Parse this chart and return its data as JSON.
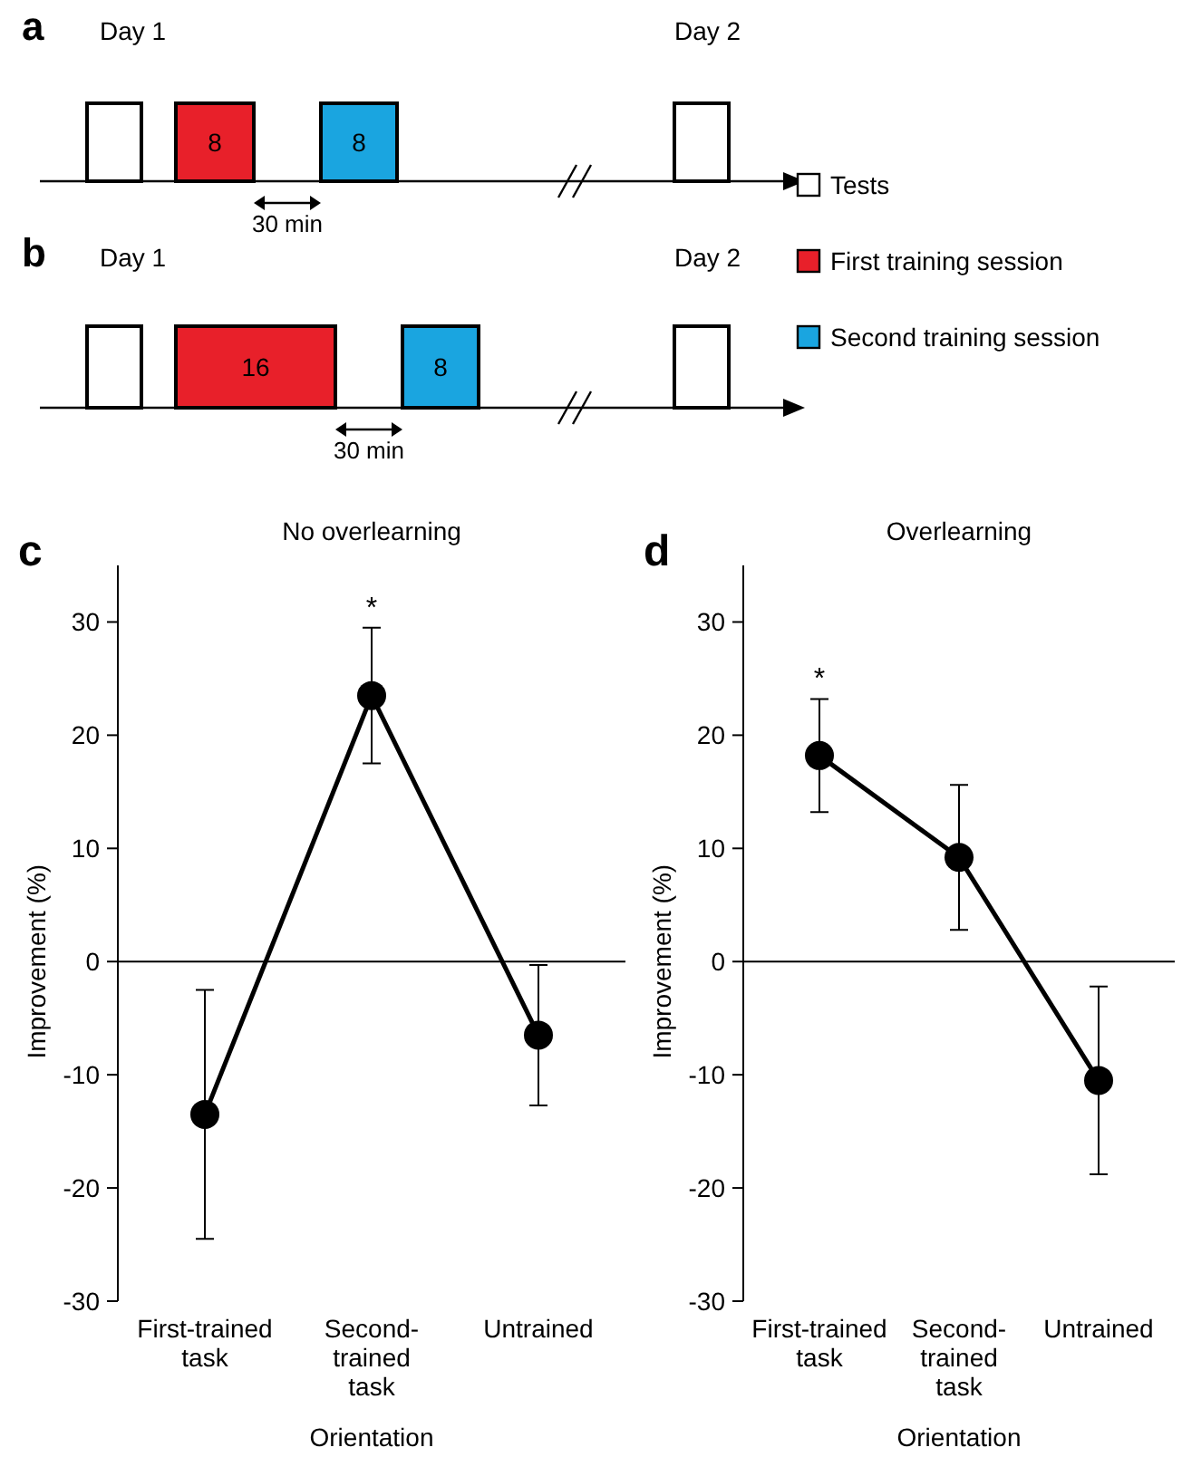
{
  "chart_data": [
    {
      "type": "other",
      "annotations": [
        "a",
        "Day 1",
        "8",
        "8",
        "30 min",
        "Day 2"
      ],
      "legend": "right",
      "series": [
        {
          "name": "Tests",
          "color": "#ffffff"
        },
        {
          "name": "First training session",
          "color": "#e8202a"
        },
        {
          "name": "Second training session",
          "color": "#1aa5e0"
        }
      ]
    },
    {
      "type": "other",
      "annotations": [
        "b",
        "Day 1",
        "16",
        "8",
        "30 min",
        "Day 2"
      ],
      "series": [
        {
          "color": "#ffffff"
        },
        {
          "color": "#e8202a"
        },
        {
          "color": "#1aa5e0"
        }
      ]
    },
    {
      "type": "line",
      "title": "No overlearning",
      "annotations": [
        "c",
        {
          "text": "*",
          "x": "Second-\ntrained\ntask",
          "y": 29.5
        }
      ],
      "categories": [
        "First-trained\ntask",
        "Second-\ntrained\ntask",
        "Untrained"
      ],
      "series": [
        {
          "color": "#000000",
          "values": [
            -13.5,
            23.5,
            -6.5
          ],
          "errors": [
            11,
            6,
            6.2
          ]
        }
      ],
      "ylim": [
        -30,
        35
      ],
      "yticks": [
        -30,
        -20,
        -10,
        0,
        10,
        20,
        30
      ],
      "ylabel": "Improvement (%)",
      "xlabel": "Orientation",
      "ref_lines": [
        {
          "axis": "y",
          "value": 0
        }
      ],
      "marker": "circle",
      "line_style": "solid"
    },
    {
      "type": "line",
      "title": "Overlearning",
      "annotations": [
        "d",
        {
          "text": "*",
          "x": "First-trained\ntask",
          "y": 23.2
        }
      ],
      "categories": [
        "First-trained\ntask",
        "Second-\ntrained\ntask",
        "Untrained"
      ],
      "series": [
        {
          "color": "#000000",
          "values": [
            18.2,
            9.2,
            -10.5
          ],
          "errors": [
            5,
            6.4,
            8.3
          ]
        }
      ],
      "ylim": [
        -30,
        35
      ],
      "yticks": [
        -30,
        -20,
        -10,
        0,
        10,
        20,
        30
      ],
      "ylabel": "Improvement (%)",
      "xlabel": "Orientation",
      "ref_lines": [
        {
          "axis": "y",
          "value": 0
        }
      ],
      "marker": "circle",
      "line_style": "solid"
    }
  ]
}
